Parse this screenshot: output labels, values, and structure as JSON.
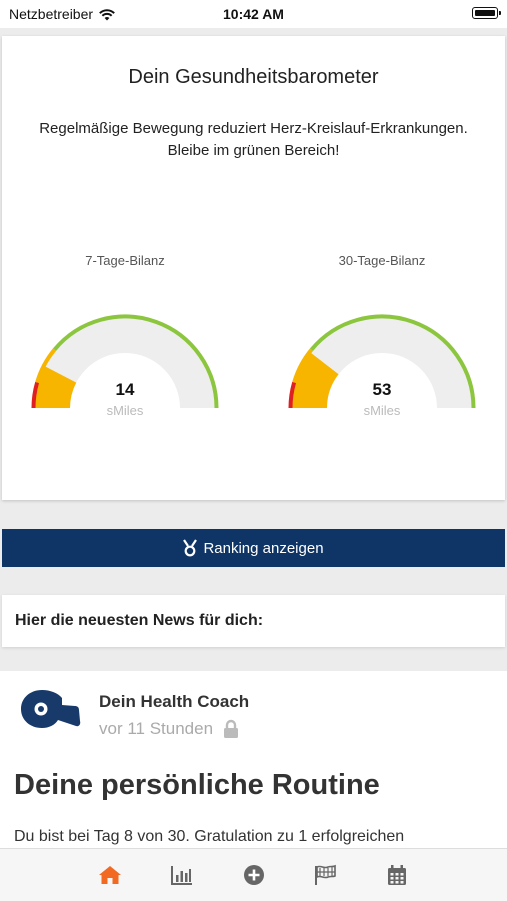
{
  "status_bar": {
    "carrier": "Netzbetreiber",
    "time": "10:42 AM"
  },
  "barometer": {
    "title": "Dein Gesundheitsbarometer",
    "subtitle_line1": "Regelmäßige Bewegung reduziert Herz-Kreislauf-Erkrankungen.",
    "subtitle_line2": "Bleibe im grünen Bereich!",
    "gauges": [
      {
        "label": "7-Tage-Bilanz",
        "value": "14",
        "unit": "sMiles",
        "level": 0.14
      },
      {
        "label": "30-Tage-Bilanz",
        "value": "53",
        "unit": "sMiles",
        "level": 0.2
      }
    ],
    "colors": {
      "red": "#e02020",
      "orange": "#f7b500",
      "green": "#8cc63f",
      "track": "#eeeeee"
    }
  },
  "ranking": {
    "label": "Ranking anzeigen",
    "icon": "medal-icon",
    "background": "#0f3566"
  },
  "news": {
    "header": "Hier die neuesten News für dich:",
    "item": {
      "author": "Dein Health Coach",
      "time": "vor 11 Stunden",
      "locked_icon": "lock-icon",
      "title": "Deine persönliche Routine",
      "body": "Du bist bei Tag 8 von 30. Gratulation zu 1 erfolgreichen"
    }
  },
  "tab_bar": {
    "active_color": "#f26a21",
    "tabs": [
      {
        "icon": "home-icon",
        "active": true
      },
      {
        "icon": "chart-icon",
        "active": false
      },
      {
        "icon": "add-icon",
        "active": false
      },
      {
        "icon": "flag-icon",
        "active": false
      },
      {
        "icon": "calendar-icon",
        "active": false
      }
    ]
  }
}
